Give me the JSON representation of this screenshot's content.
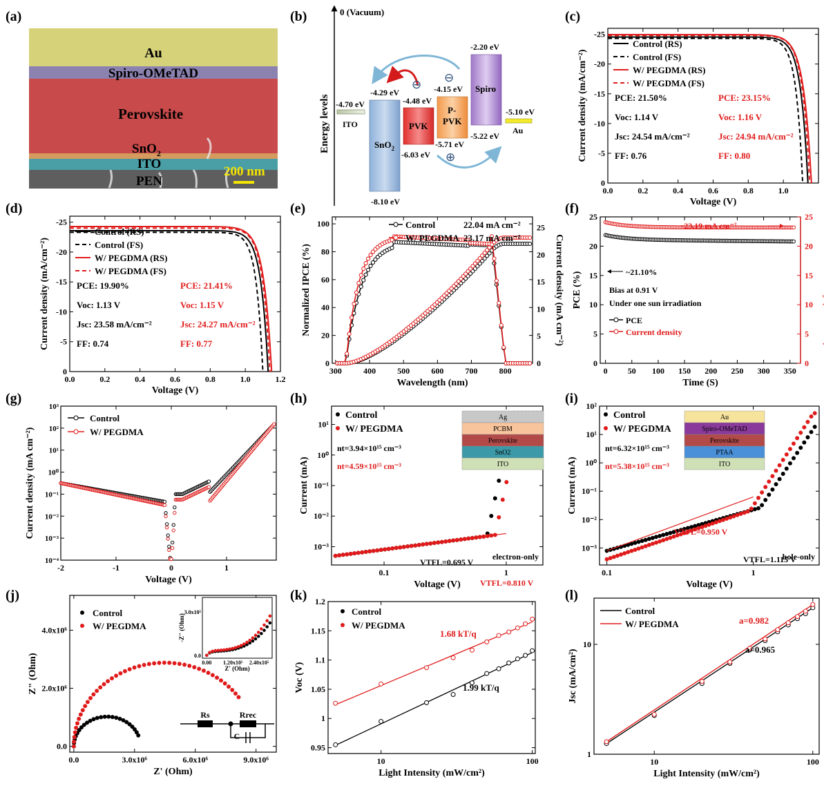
{
  "panel_labels": [
    "(a)",
    "(b)",
    "(c)",
    "(d)",
    "(e)",
    "(f)",
    "(g)",
    "(h)",
    "(i)",
    "(j)",
    "(k)",
    "(l)"
  ],
  "colors": {
    "control": "#000000",
    "pegdma": "#e01b1b"
  },
  "a": {
    "layers": [
      "Au",
      "Spiro-OMeTAD",
      "Perovskite",
      "SnO2",
      "ITO",
      "PEN"
    ],
    "scale_bar": "200 nm"
  },
  "b": {
    "vacuum": "0 (Vacuum)",
    "ylabel": "Energy levels",
    "levels": {
      "ito": "-4.70 eV",
      "sno2_top": "-4.29 eV",
      "sno2_bot": "-8.10 eV",
      "pvk_top": "-4.48 eV",
      "pvk_bot": "-6.03 eV",
      "ppvk_top": "-4.15 eV",
      "ppvk_bot": "-5.71 eV",
      "spiro_top": "-2.20 eV",
      "spiro_bot": "-5.22 eV",
      "au": "-5.10 eV"
    },
    "names": {
      "ito": "ITO",
      "sno2": "SnO2",
      "pvk": "PVK",
      "ppvk1": "P-",
      "ppvk2": "PVK",
      "spiro": "Spiro",
      "au": "Au"
    },
    "charges": {
      "minus": "⊖",
      "plus": "⊕"
    }
  },
  "chart_data": [
    {
      "id": "c",
      "type": "line",
      "xlabel": "Voltage (V)",
      "ylabel": "Current density (mA/cm⁻²)",
      "xlim": [
        0,
        1.2
      ],
      "ylim": [
        0,
        -26
      ],
      "xticks": [
        "0.0",
        "0.2",
        "0.4",
        "0.6",
        "0.8",
        "1.0"
      ],
      "yticks": [
        "0",
        "-5",
        "-10",
        "-15",
        "-20",
        "-25"
      ],
      "series": [
        {
          "name": "Control (RS)",
          "jsc": 24.54,
          "voc": 1.14,
          "style": "solid",
          "color": "#000"
        },
        {
          "name": "Control (FS)",
          "jsc": 24.3,
          "voc": 1.11,
          "style": "dash",
          "color": "#000"
        },
        {
          "name": "W/ PEGDMA (RS)",
          "jsc": 24.94,
          "voc": 1.16,
          "style": "solid",
          "color": "#e01b1b"
        },
        {
          "name": "W/ PEGDMA (FS)",
          "jsc": 24.8,
          "voc": 1.15,
          "style": "dash",
          "color": "#e01b1b"
        }
      ],
      "annot_left": [
        "PCE: 21.50%",
        "Voc: 1.14 V",
        "Jsc: 24.54 mA/cm⁻²",
        "FF: 0.76"
      ],
      "annot_right": [
        "PCE: 23.15%",
        "Voc: 1.16 V",
        "Jsc: 24.94 mA/cm⁻²",
        "FF: 0.80"
      ]
    },
    {
      "id": "d",
      "type": "line",
      "xlabel": "Voltage (V)",
      "ylabel": "Current density (mA/cm⁻²)",
      "xlim": [
        0,
        1.2
      ],
      "ylim": [
        0,
        -26
      ],
      "xticks": [
        "0.0",
        "0.2",
        "0.4",
        "0.6",
        "0.8",
        "1.0",
        "1.2"
      ],
      "yticks": [
        "0",
        "-5",
        "-10",
        "-15",
        "-20",
        "-25"
      ],
      "series": [
        {
          "name": "Control (RS)",
          "jsc": 23.58,
          "voc": 1.13,
          "style": "solid",
          "color": "#000"
        },
        {
          "name": "Control (FS)",
          "jsc": 23.3,
          "voc": 1.1,
          "style": "dash",
          "color": "#000"
        },
        {
          "name": "W/ PEGDMA (RS)",
          "jsc": 24.27,
          "voc": 1.15,
          "style": "solid",
          "color": "#e01b1b"
        },
        {
          "name": "W/ PEGDMA (FS)",
          "jsc": 24.0,
          "voc": 1.14,
          "style": "dash",
          "color": "#e01b1b"
        }
      ],
      "annot_left": [
        "PCE: 19.90%",
        "Voc: 1.13 V",
        "Jsc: 23.58 mA/cm⁻²",
        "FF: 0.74"
      ],
      "annot_right": [
        "PCE: 21.41%",
        "Voc: 1.15 V",
        "Jsc: 24.27 mA/cm⁻²",
        "FF: 0.77"
      ]
    },
    {
      "id": "e",
      "type": "line",
      "xlabel": "Wavelength (nm)",
      "ylabel": "Normalized IPCE (%)",
      "y2label": "Current density (mA cm⁻²)",
      "xlim": [
        290,
        880
      ],
      "ylim": [
        0,
        105
      ],
      "y2lim": [
        0,
        27
      ],
      "xticks": [
        "300",
        "400",
        "500",
        "600",
        "700",
        "800"
      ],
      "yticks": [
        "0",
        "20",
        "40",
        "60",
        "80",
        "100"
      ],
      "y2ticks": [
        "0",
        "5",
        "10",
        "15",
        "20",
        "25"
      ],
      "series": [
        {
          "name": "Control",
          "value": "22.04 mA cm⁻²",
          "ipce_peak": 87,
          "jint": 22.04,
          "color": "#000"
        },
        {
          "name": "W/ PEGDMA",
          "value": "23.17 mA cm⁻²",
          "ipce_peak": 91,
          "jint": 23.17,
          "color": "#e01b1b"
        }
      ]
    },
    {
      "id": "f",
      "type": "scatter",
      "xlabel": "Time (S)",
      "ylabel": "PCE (%)",
      "y2label": "Current density (mA cm⁻²)",
      "xlim": [
        -10,
        370
      ],
      "ylim": [
        0,
        25
      ],
      "y2lim": [
        0,
        25
      ],
      "xticks": [
        "0",
        "50",
        "100",
        "150",
        "200",
        "250",
        "300",
        "350"
      ],
      "yticks": [
        "0",
        "5",
        "10",
        "15",
        "20",
        "25"
      ],
      "series": [
        {
          "name": "PCE",
          "value": 21.1,
          "color": "#000"
        },
        {
          "name": "Current density",
          "value": 23.19,
          "color": "#e01b1b"
        }
      ],
      "annotations": [
        "~23.19 mA cm⁻²",
        "~21.10%",
        "Bias at 0.91 V",
        "Under one sun irradiation"
      ]
    },
    {
      "id": "g",
      "type": "scatter",
      "xlabel": "Voltage (V)",
      "ylabel": "Current density (mA cm⁻²)",
      "xlim": [
        -2,
        1.9
      ],
      "ylim_log": [
        -4,
        3
      ],
      "xticks": [
        "-2",
        "-1",
        "0",
        "1"
      ],
      "yticks": [
        "10⁻⁴",
        "10⁻³",
        "10⁻²",
        "10⁻¹",
        "10⁰",
        "10¹",
        "10²",
        "10³"
      ],
      "series": [
        {
          "name": "Control",
          "color": "#000"
        },
        {
          "name": "W/ PEGDMA",
          "color": "#e01b1b"
        }
      ]
    },
    {
      "id": "h",
      "type": "scatter",
      "xlabel": "Voltage (V)",
      "ylabel": "Current (mA)",
      "xlim_log": [
        -1.43,
        0.3
      ],
      "ylim_log": [
        -3.6,
        1.6
      ],
      "xticks": [
        "0.1",
        "1"
      ],
      "yticks": [
        "10⁻³",
        "10⁻²",
        "10⁻¹",
        "10⁰",
        "10¹"
      ],
      "series": [
        {
          "name": "Control",
          "vtfl": 0.695,
          "color": "#000"
        },
        {
          "name": "W/ PEGDMA",
          "vtfl": 0.81,
          "color": "#e01b1b"
        }
      ],
      "annot": {
        "nt1": "nt=3.94×10¹⁵ cm⁻³",
        "nt2": "nt=4.59×10¹⁵ cm⁻³",
        "v1": "VTFL=0.695 V",
        "v2": "VTFL=0.810 V",
        "device": "electron-only"
      },
      "stack": [
        "Ag",
        "PCBM",
        "Perovskite",
        "SnO2",
        "ITO"
      ]
    },
    {
      "id": "i",
      "type": "scatter",
      "xlabel": "Voltage (V)",
      "ylabel": "Current (mA)",
      "xlim_log": [
        -1.05,
        0.45
      ],
      "ylim_log": [
        -3.6,
        2
      ],
      "xticks": [
        "0.1",
        "1"
      ],
      "yticks": [
        "10⁻³",
        "10⁻²",
        "10⁻¹",
        "10⁰",
        "10¹",
        "10²"
      ],
      "series": [
        {
          "name": "Control",
          "vtfl": 1.115,
          "color": "#000"
        },
        {
          "name": "W/ PEGDMA",
          "vtfl": 0.95,
          "color": "#e01b1b"
        }
      ],
      "annot": {
        "nt1": "nt=6.32×10¹⁵ cm⁻³",
        "nt2": "nt=5.38×10¹⁵ cm⁻³",
        "v1": "VTFL=1.115 V",
        "v2": "VTFL=0.950 V",
        "device": "hole-only"
      },
      "stack": [
        "Au",
        "Spiro-OMeTAD",
        "Perovskite",
        "PTAA",
        "ITO"
      ]
    },
    {
      "id": "j",
      "type": "scatter",
      "xlabel": "Z' (Ohm)",
      "ylabel": "Z\" (Ohm)",
      "xlim": [
        -200000.0,
        10000000.0
      ],
      "ylim": [
        -200000.0,
        5200000.0
      ],
      "xticks": [
        "0.0",
        "3.0x10⁶",
        "6.0x10⁶",
        "9.0x10⁶"
      ],
      "yticks": [
        "0.0",
        "2.0x10⁶",
        "4.0x10⁶"
      ],
      "series": [
        {
          "name": "Control",
          "rrec": 3300000.0,
          "color": "#000"
        },
        {
          "name": "W/ PEGDMA",
          "rrec": 9000000.0,
          "color": "#e01b1b"
        }
      ],
      "inset": {
        "xlabel": "Z' (Ohm)",
        "ylabel": "-Z\" (Ohm)",
        "xticks": [
          "0.00",
          "1.20x10⁵",
          "2.40x10⁵"
        ],
        "yticks": [
          "0.0",
          "3.0x10⁵"
        ]
      },
      "circuit": {
        "rs": "Rs",
        "rrec": "Rrec",
        "c": "C"
      }
    },
    {
      "id": "k",
      "type": "scatter",
      "xlabel": "Light Intensity (mW/cm²)",
      "ylabel": "Voc (V)",
      "xlim_log": [
        0.65,
        2.02
      ],
      "ylim": [
        0.94,
        1.2
      ],
      "xticks": [
        "10",
        "100"
      ],
      "yticks": [
        "0.95",
        "1",
        "1.05",
        "1.1",
        "1.15",
        "1.2"
      ],
      "series": [
        {
          "name": "Control",
          "x": [
            5,
            10,
            20,
            30,
            40,
            50,
            60,
            70,
            80,
            90,
            100
          ],
          "y": [
            0.955,
            0.995,
            1.027,
            1.041,
            1.061,
            1.077,
            1.085,
            1.095,
            1.102,
            1.108,
            1.116
          ],
          "slope": "1.99 kT/q",
          "color": "#000"
        },
        {
          "name": "W/ PEGDMA",
          "x": [
            5,
            10,
            20,
            30,
            40,
            50,
            60,
            70,
            80,
            90,
            100
          ],
          "y": [
            1.026,
            1.059,
            1.087,
            1.104,
            1.117,
            1.131,
            1.142,
            1.148,
            1.155,
            1.162,
            1.17
          ],
          "slope": "1.68 kT/q",
          "color": "#e01b1b"
        }
      ]
    },
    {
      "id": "l",
      "type": "line",
      "xlabel": "Light Intensity (mW/cm²)",
      "ylabel": "Jsc (mA/cm²)",
      "xlim_log": [
        0.62,
        2.04
      ],
      "ylim_log": [
        0,
        1.42
      ],
      "xticks": [
        "10",
        "100"
      ],
      "yticks": [
        "1",
        "10"
      ],
      "series": [
        {
          "name": "Control",
          "x": [
            5,
            10,
            20,
            30,
            40,
            50,
            60,
            70,
            80,
            90,
            100
          ],
          "y": [
            1.25,
            2.25,
            4.4,
            6.7,
            8.9,
            10.8,
            13.0,
            15.0,
            17.1,
            19.0,
            21.5
          ],
          "a": "a=0.965",
          "color": "#000"
        },
        {
          "name": "W/ PEGDMA",
          "x": [
            5,
            10,
            20,
            30,
            40,
            50,
            60,
            70,
            80,
            90,
            100
          ],
          "y": [
            1.3,
            2.3,
            4.6,
            6.9,
            9.2,
            11.2,
            13.6,
            15.7,
            17.9,
            20.0,
            23.0
          ],
          "a": "a=0.982",
          "color": "#e01b1b"
        }
      ]
    }
  ]
}
